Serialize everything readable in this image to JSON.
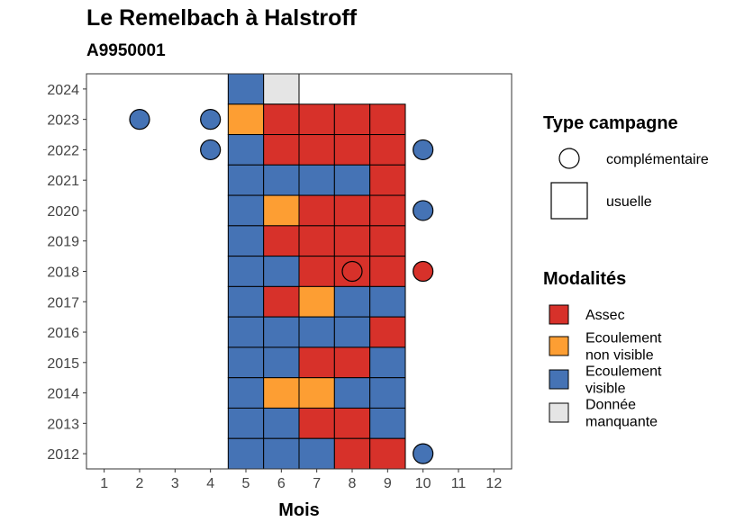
{
  "chart_data": {
    "type": "heatmap",
    "title": "Le Remelbach à Halstroff",
    "subtitle": "A9950001",
    "xlabel": "Mois",
    "ylabel": "",
    "x_ticks": [
      "1",
      "2",
      "3",
      "4",
      "5",
      "6",
      "7",
      "8",
      "9",
      "10",
      "11",
      "12"
    ],
    "y_ticks": [
      "2012",
      "2013",
      "2014",
      "2015",
      "2016",
      "2017",
      "2018",
      "2019",
      "2020",
      "2021",
      "2022",
      "2023",
      "2024"
    ],
    "xlim": [
      0.5,
      12.5
    ],
    "ylim": [
      2011.5,
      2024.5
    ],
    "colors": {
      "Assec": "#d7312a",
      "Ecoulement non visible": "#fd9e33",
      "Ecoulement visible": "#4573b5",
      "Donnée manquante": "#e5e5e5"
    },
    "usuelle": [
      {
        "year": 2024,
        "month": 5,
        "modalite": "Ecoulement visible"
      },
      {
        "year": 2024,
        "month": 6,
        "modalite": "Donnée manquante"
      },
      {
        "year": 2023,
        "month": 5,
        "modalite": "Ecoulement non visible"
      },
      {
        "year": 2023,
        "month": 6,
        "modalite": "Assec"
      },
      {
        "year": 2023,
        "month": 7,
        "modalite": "Assec"
      },
      {
        "year": 2023,
        "month": 8,
        "modalite": "Assec"
      },
      {
        "year": 2023,
        "month": 9,
        "modalite": "Assec"
      },
      {
        "year": 2022,
        "month": 5,
        "modalite": "Ecoulement visible"
      },
      {
        "year": 2022,
        "month": 6,
        "modalite": "Assec"
      },
      {
        "year": 2022,
        "month": 7,
        "modalite": "Assec"
      },
      {
        "year": 2022,
        "month": 8,
        "modalite": "Assec"
      },
      {
        "year": 2022,
        "month": 9,
        "modalite": "Assec"
      },
      {
        "year": 2021,
        "month": 5,
        "modalite": "Ecoulement visible"
      },
      {
        "year": 2021,
        "month": 6,
        "modalite": "Ecoulement visible"
      },
      {
        "year": 2021,
        "month": 7,
        "modalite": "Ecoulement visible"
      },
      {
        "year": 2021,
        "month": 8,
        "modalite": "Ecoulement visible"
      },
      {
        "year": 2021,
        "month": 9,
        "modalite": "Assec"
      },
      {
        "year": 2020,
        "month": 5,
        "modalite": "Ecoulement visible"
      },
      {
        "year": 2020,
        "month": 6,
        "modalite": "Ecoulement non visible"
      },
      {
        "year": 2020,
        "month": 7,
        "modalite": "Assec"
      },
      {
        "year": 2020,
        "month": 8,
        "modalite": "Assec"
      },
      {
        "year": 2020,
        "month": 9,
        "modalite": "Assec"
      },
      {
        "year": 2019,
        "month": 5,
        "modalite": "Ecoulement visible"
      },
      {
        "year": 2019,
        "month": 6,
        "modalite": "Assec"
      },
      {
        "year": 2019,
        "month": 7,
        "modalite": "Assec"
      },
      {
        "year": 2019,
        "month": 8,
        "modalite": "Assec"
      },
      {
        "year": 2019,
        "month": 9,
        "modalite": "Assec"
      },
      {
        "year": 2018,
        "month": 5,
        "modalite": "Ecoulement visible"
      },
      {
        "year": 2018,
        "month": 6,
        "modalite": "Ecoulement visible"
      },
      {
        "year": 2018,
        "month": 7,
        "modalite": "Assec"
      },
      {
        "year": 2018,
        "month": 8,
        "modalite": "Assec"
      },
      {
        "year": 2018,
        "month": 9,
        "modalite": "Assec"
      },
      {
        "year": 2017,
        "month": 5,
        "modalite": "Ecoulement visible"
      },
      {
        "year": 2017,
        "month": 6,
        "modalite": "Assec"
      },
      {
        "year": 2017,
        "month": 7,
        "modalite": "Ecoulement non visible"
      },
      {
        "year": 2017,
        "month": 8,
        "modalite": "Ecoulement visible"
      },
      {
        "year": 2017,
        "month": 9,
        "modalite": "Ecoulement visible"
      },
      {
        "year": 2016,
        "month": 5,
        "modalite": "Ecoulement visible"
      },
      {
        "year": 2016,
        "month": 6,
        "modalite": "Ecoulement visible"
      },
      {
        "year": 2016,
        "month": 7,
        "modalite": "Ecoulement visible"
      },
      {
        "year": 2016,
        "month": 8,
        "modalite": "Ecoulement visible"
      },
      {
        "year": 2016,
        "month": 9,
        "modalite": "Assec"
      },
      {
        "year": 2015,
        "month": 5,
        "modalite": "Ecoulement visible"
      },
      {
        "year": 2015,
        "month": 6,
        "modalite": "Ecoulement visible"
      },
      {
        "year": 2015,
        "month": 7,
        "modalite": "Assec"
      },
      {
        "year": 2015,
        "month": 8,
        "modalite": "Assec"
      },
      {
        "year": 2015,
        "month": 9,
        "modalite": "Ecoulement visible"
      },
      {
        "year": 2014,
        "month": 5,
        "modalite": "Ecoulement visible"
      },
      {
        "year": 2014,
        "month": 6,
        "modalite": "Ecoulement non visible"
      },
      {
        "year": 2014,
        "month": 7,
        "modalite": "Ecoulement non visible"
      },
      {
        "year": 2014,
        "month": 8,
        "modalite": "Ecoulement visible"
      },
      {
        "year": 2014,
        "month": 9,
        "modalite": "Ecoulement visible"
      },
      {
        "year": 2013,
        "month": 5,
        "modalite": "Ecoulement visible"
      },
      {
        "year": 2013,
        "month": 6,
        "modalite": "Ecoulement visible"
      },
      {
        "year": 2013,
        "month": 7,
        "modalite": "Assec"
      },
      {
        "year": 2013,
        "month": 8,
        "modalite": "Assec"
      },
      {
        "year": 2013,
        "month": 9,
        "modalite": "Ecoulement visible"
      },
      {
        "year": 2012,
        "month": 5,
        "modalite": "Ecoulement visible"
      },
      {
        "year": 2012,
        "month": 6,
        "modalite": "Ecoulement visible"
      },
      {
        "year": 2012,
        "month": 7,
        "modalite": "Ecoulement visible"
      },
      {
        "year": 2012,
        "month": 8,
        "modalite": "Assec"
      },
      {
        "year": 2012,
        "month": 9,
        "modalite": "Assec"
      }
    ],
    "complementaire": [
      {
        "year": 2023,
        "month": 2,
        "modalite": "Ecoulement visible"
      },
      {
        "year": 2023,
        "month": 4,
        "modalite": "Ecoulement visible"
      },
      {
        "year": 2022,
        "month": 4,
        "modalite": "Ecoulement visible"
      },
      {
        "year": 2022,
        "month": 10,
        "modalite": "Ecoulement visible"
      },
      {
        "year": 2020,
        "month": 10,
        "modalite": "Ecoulement visible"
      },
      {
        "year": 2018,
        "month": 8,
        "modalite": "Assec"
      },
      {
        "year": 2018,
        "month": 10,
        "modalite": "Assec"
      },
      {
        "year": 2012,
        "month": 10,
        "modalite": "Ecoulement visible"
      }
    ],
    "legend": {
      "type_title": "Type campagne",
      "type_items": [
        "complémentaire",
        "usuelle"
      ],
      "mod_title": "Modalités",
      "mod_items": [
        {
          "lines": [
            "Assec"
          ],
          "color": "#d7312a"
        },
        {
          "lines": [
            "Ecoulement",
            "non visible"
          ],
          "color": "#fd9e33"
        },
        {
          "lines": [
            "Ecoulement",
            "visible"
          ],
          "color": "#4573b5"
        },
        {
          "lines": [
            "Donnée",
            "manquante"
          ],
          "color": "#e5e5e5"
        }
      ],
      "position": "right"
    },
    "grid": false
  }
}
